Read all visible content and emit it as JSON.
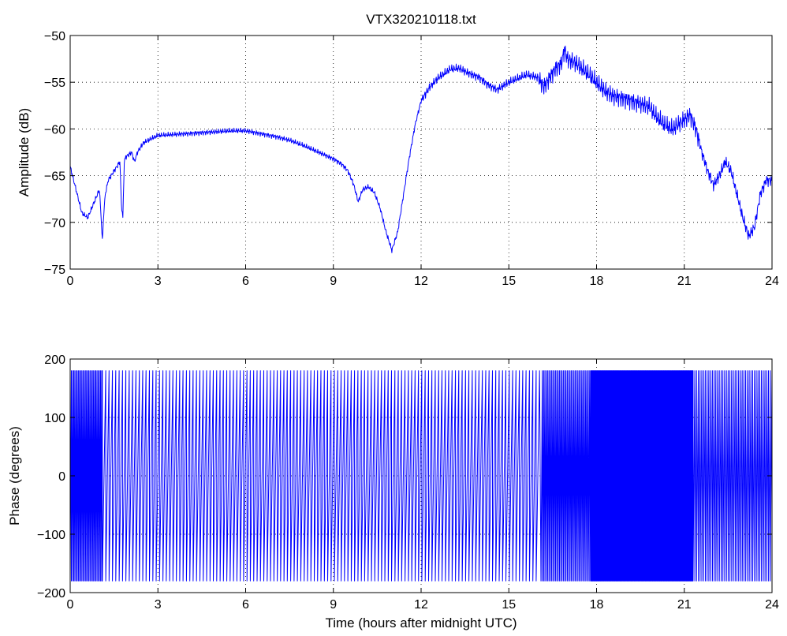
{
  "figure": {
    "title": "VTX320210118.txt"
  },
  "colors": {
    "series": "#0000ff",
    "axes": "#000000",
    "background": "#ffffff"
  },
  "chart_data": [
    {
      "type": "line",
      "title": "VTX320210118.txt",
      "xlabel": "",
      "ylabel": "Amplitude (dB)",
      "xlim": [
        0,
        24
      ],
      "ylim": [
        -75,
        -50
      ],
      "xticks": [
        0,
        3,
        6,
        9,
        12,
        15,
        18,
        21,
        24
      ],
      "yticks": [
        -75,
        -70,
        -65,
        -60,
        -55,
        -50
      ],
      "xtick_labels": [
        "0",
        "3",
        "6",
        "9",
        "12",
        "15",
        "18",
        "21",
        "24"
      ],
      "ytick_labels": [
        "−75",
        "−70",
        "−65",
        "−60",
        "−55",
        "−50"
      ],
      "grid": true,
      "series": [
        {
          "color": "#0000ff",
          "x": [
            0,
            0.2,
            0.4,
            0.6,
            0.8,
            1.0,
            1.05,
            1.1,
            1.15,
            1.2,
            1.3,
            1.5,
            1.7,
            1.75,
            1.8,
            1.85,
            1.9,
            2.1,
            2.2,
            2.3,
            2.5,
            2.8,
            3.0,
            3.5,
            4.0,
            4.5,
            5.0,
            5.5,
            6.0,
            6.5,
            7.0,
            7.5,
            8.0,
            8.5,
            9.0,
            9.3,
            9.5,
            9.7,
            9.85,
            10.0,
            10.2,
            10.4,
            10.6,
            10.8,
            11.0,
            11.2,
            11.4,
            11.6,
            11.8,
            12.0,
            12.3,
            12.6,
            13.0,
            13.3,
            13.6,
            14.0,
            14.3,
            14.6,
            15.0,
            15.3,
            15.6,
            16.0,
            16.2,
            16.4,
            16.6,
            16.8,
            16.9,
            17.0,
            17.3,
            17.6,
            18.0,
            18.3,
            18.6,
            19.0,
            19.4,
            19.8,
            20.0,
            20.3,
            20.6,
            21.0,
            21.2,
            21.4,
            21.6,
            21.8,
            22.0,
            22.2,
            22.4,
            22.6,
            22.8,
            23.0,
            23.2,
            23.4,
            23.6,
            23.8,
            24.0
          ],
          "y": [
            -64,
            -66.5,
            -69,
            -69.5,
            -68,
            -66.5,
            -69,
            -72,
            -69,
            -67,
            -65.5,
            -64.5,
            -63.5,
            -68,
            -69.5,
            -63.5,
            -63,
            -62.5,
            -63.5,
            -62.5,
            -61.5,
            -61,
            -60.7,
            -60.6,
            -60.5,
            -60.4,
            -60.3,
            -60.2,
            -60.2,
            -60.5,
            -60.8,
            -61.2,
            -61.8,
            -62.5,
            -63.2,
            -63.8,
            -64.5,
            -66,
            -67.8,
            -66.5,
            -66.2,
            -66.8,
            -68.5,
            -71,
            -73,
            -71,
            -67,
            -63,
            -59.5,
            -57,
            -55.5,
            -54.5,
            -53.6,
            -53.5,
            -54,
            -54.5,
            -55.3,
            -55.8,
            -55,
            -54.6,
            -54.2,
            -54.5,
            -55.5,
            -54.5,
            -53.5,
            -53,
            -51.5,
            -52.5,
            -53,
            -53.8,
            -55,
            -56,
            -56.5,
            -56.8,
            -57.2,
            -57.6,
            -58.5,
            -59.5,
            -60,
            -59,
            -58.5,
            -60,
            -62.5,
            -64.5,
            -66,
            -65,
            -63.5,
            -64.5,
            -67,
            -69.5,
            -71.5,
            -70.5,
            -67,
            -65.5,
            -65.5
          ]
        }
      ]
    },
    {
      "type": "line",
      "title": "",
      "xlabel": "Time (hours after midnight UTC)",
      "ylabel": "Phase (degrees)",
      "xlim": [
        0,
        24
      ],
      "ylim": [
        -200,
        200
      ],
      "xticks": [
        0,
        3,
        6,
        9,
        12,
        15,
        18,
        21,
        24
      ],
      "yticks": [
        -200,
        -100,
        0,
        100,
        200
      ],
      "xtick_labels": [
        "0",
        "3",
        "6",
        "9",
        "12",
        "15",
        "18",
        "21",
        "24"
      ],
      "ytick_labels": [
        "−200",
        "−100",
        "0",
        "100",
        "200"
      ],
      "grid": true,
      "series": [
        {
          "color": "#0000ff",
          "phase_wrap_range": [
            -180,
            180
          ],
          "segments": [
            {
              "x_start": 0.0,
              "x_end": 1.1,
              "wrap_period_hours": 0.04
            },
            {
              "x_start": 1.1,
              "x_end": 16.1,
              "wrap_period_hours": 0.115
            },
            {
              "x_start": 16.1,
              "x_end": 17.8,
              "wrap_period_hours": 0.045
            },
            {
              "x_start": 17.8,
              "x_end": 21.3,
              "wrap_period_hours": 0.02
            },
            {
              "x_start": 21.3,
              "x_end": 24.0,
              "wrap_period_hours": 0.06
            }
          ]
        }
      ]
    }
  ]
}
